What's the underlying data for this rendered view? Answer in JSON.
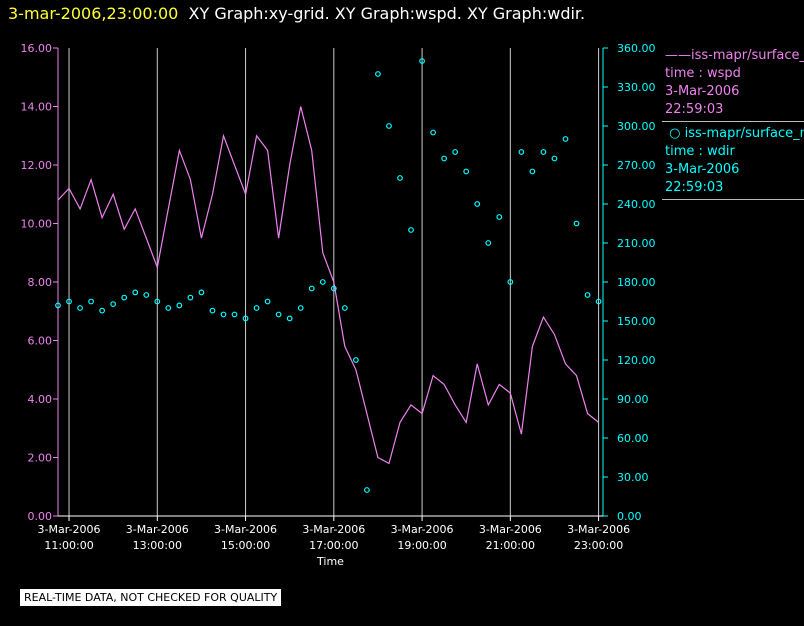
{
  "header": {
    "timestamp": "3-mar-2006,23:00:00",
    "titles": "XY Graph:xy-grid.  XY Graph:wspd.  XY Graph:wdir."
  },
  "legend": [
    {
      "line1": "iss-mapr/surface_m",
      "line2": "time : wspd",
      "line3": "3-Mar-2006",
      "line4": "22:59:03",
      "color": "#ee82ee",
      "marker": "line"
    },
    {
      "line1": "iss-mapr/surface_m",
      "line2": "time : wdir",
      "line3": "3-Mar-2006",
      "line4": "22:59:03",
      "color": "#00ffff",
      "marker": "circle"
    }
  ],
  "disclaimer": "REAL-TIME DATA, NOT CHECKED FOR QUALITY",
  "chart_data": {
    "type": "line",
    "xlabel": "Time",
    "x_range_hours": [
      10.75,
      23.1
    ],
    "x_ticks": [
      {
        "date": "3-Mar-2006",
        "time": "11:00:00",
        "hour": 11
      },
      {
        "date": "3-Mar-2006",
        "time": "13:00:00",
        "hour": 13
      },
      {
        "date": "3-Mar-2006",
        "time": "15:00:00",
        "hour": 15
      },
      {
        "date": "3-Mar-2006",
        "time": "17:00:00",
        "hour": 17
      },
      {
        "date": "3-Mar-2006",
        "time": "19:00:00",
        "hour": 19
      },
      {
        "date": "3-Mar-2006",
        "time": "21:00:00",
        "hour": 21
      },
      {
        "date": "3-Mar-2006",
        "time": "23:00:00",
        "hour": 23
      }
    ],
    "y_left": {
      "range": [
        0,
        16
      ],
      "ticks": [
        "0.00",
        "2.00",
        "4.00",
        "6.00",
        "8.00",
        "10.00",
        "12.00",
        "14.00",
        "16.00"
      ],
      "color": "#ee82ee"
    },
    "y_right": {
      "range": [
        0,
        360
      ],
      "ticks": [
        "0.00",
        "30.00",
        "60.00",
        "90.00",
        "120.00",
        "150.00",
        "180.00",
        "210.00",
        "240.00",
        "270.00",
        "300.00",
        "330.00",
        "360.00"
      ],
      "color": "#00ffff"
    },
    "series": [
      {
        "axis": "left",
        "style": "line",
        "color": "#ee82ee",
        "x_hours": [
          10.75,
          11.0,
          11.25,
          11.5,
          11.75,
          12.0,
          12.25,
          12.5,
          12.75,
          13.0,
          13.25,
          13.5,
          13.75,
          14.0,
          14.25,
          14.5,
          14.75,
          15.0,
          15.25,
          15.5,
          15.75,
          16.0,
          16.25,
          16.5,
          16.75,
          17.0,
          17.25,
          17.5,
          17.75,
          18.0,
          18.25,
          18.5,
          18.75,
          19.0,
          19.25,
          19.5,
          19.75,
          20.0,
          20.25,
          20.5,
          20.75,
          21.0,
          21.25,
          21.5,
          21.75,
          22.0,
          22.25,
          22.5,
          22.75,
          23.0
        ],
        "values": [
          10.8,
          11.2,
          10.5,
          11.5,
          10.2,
          11.0,
          9.8,
          10.5,
          9.5,
          8.5,
          10.5,
          12.5,
          11.5,
          9.5,
          11.0,
          13.0,
          12.0,
          11.0,
          13.0,
          12.5,
          9.5,
          12.0,
          14.0,
          12.5,
          9.0,
          8.0,
          5.8,
          5.0,
          3.5,
          2.0,
          1.8,
          3.2,
          3.8,
          3.5,
          4.8,
          4.5,
          3.8,
          3.2,
          5.2,
          3.8,
          4.5,
          4.2,
          2.8,
          5.8,
          6.8,
          6.2,
          5.2,
          4.8,
          3.5,
          3.2
        ]
      },
      {
        "axis": "right",
        "style": "circle",
        "color": "#00ffff",
        "x_hours": [
          10.75,
          11.0,
          11.25,
          11.5,
          11.75,
          12.0,
          12.25,
          12.5,
          12.75,
          13.0,
          13.25,
          13.5,
          13.75,
          14.0,
          14.25,
          14.5,
          14.75,
          15.0,
          15.25,
          15.5,
          15.75,
          16.0,
          16.25,
          16.5,
          16.75,
          17.0,
          17.25,
          17.5,
          17.75,
          18.0,
          18.25,
          18.5,
          18.75,
          19.0,
          19.25,
          19.5,
          19.75,
          20.0,
          20.25,
          20.5,
          20.75,
          21.0,
          21.25,
          21.5,
          21.75,
          22.0,
          22.25,
          22.5,
          22.75,
          23.0
        ],
        "values": [
          162,
          165,
          160,
          165,
          158,
          163,
          168,
          172,
          170,
          165,
          160,
          162,
          168,
          172,
          158,
          155,
          155,
          152,
          160,
          165,
          155,
          152,
          160,
          175,
          180,
          175,
          160,
          120,
          20,
          340,
          300,
          260,
          220,
          350,
          295,
          275,
          280,
          265,
          240,
          210,
          230,
          180,
          280,
          265,
          280,
          275,
          290,
          225,
          170,
          165
        ]
      }
    ]
  }
}
